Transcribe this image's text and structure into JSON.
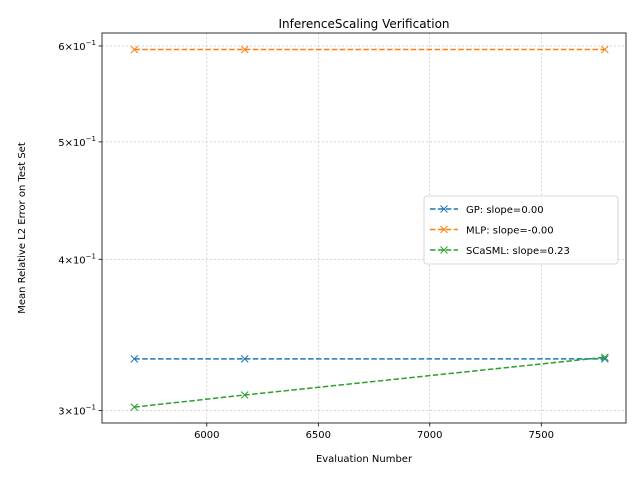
{
  "chart_data": {
    "type": "line",
    "title": "InferenceScaling Verification",
    "xlabel": "Evaluation Number",
    "ylabel": "Mean Relative L2 Error on Test Set",
    "y_scale": "log",
    "xlim": [
      5530,
      7880
    ],
    "ylim": [
      0.293,
      0.615
    ],
    "x_ticks": [
      6000,
      6500,
      7000,
      7500
    ],
    "x_tick_labels": [
      "6000",
      "6500",
      "7000",
      "7500"
    ],
    "y_ticks": [
      0.3,
      0.4,
      0.5,
      0.6
    ],
    "y_tick_labels_base": [
      "3",
      "4",
      "5",
      "6"
    ],
    "y_tick_label_times": "×10",
    "y_tick_label_exp": "−1",
    "grid": true,
    "legend_position": "center-right",
    "marker": "x",
    "line_style": "dashed",
    "series": [
      {
        "name": "GP: slope=0.00",
        "color": "#1f77b4",
        "x": [
          5675,
          6170,
          7785
        ],
        "y": [
          0.331,
          0.331,
          0.331
        ]
      },
      {
        "name": "MLP: slope=-0.00",
        "color": "#ff7f0e",
        "x": [
          5675,
          6170,
          7785
        ],
        "y": [
          0.596,
          0.596,
          0.596
        ]
      },
      {
        "name": "SCaSML: slope=0.23",
        "color": "#2ca02c",
        "x": [
          5675,
          6170,
          7785
        ],
        "y": [
          0.302,
          0.309,
          0.332
        ]
      }
    ]
  }
}
